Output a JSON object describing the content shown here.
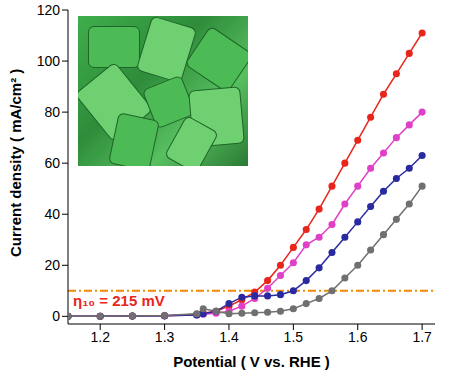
{
  "chart_data": {
    "type": "line",
    "x_label": "Potential ( V vs. RHE )",
    "y_label": "Current density ( mA/cm² )",
    "annotation": "η₁₀ = 215 mV",
    "reference_line": 10,
    "xlim": [
      1.15,
      1.72
    ],
    "xticks": [
      1.2,
      1.3,
      1.4,
      1.5,
      1.6,
      1.7
    ],
    "ylim": [
      -3,
      120
    ],
    "yticks": [
      0,
      20,
      40,
      60,
      80,
      100,
      120
    ],
    "grid": false,
    "x": [
      1.15,
      1.2,
      1.25,
      1.3,
      1.35,
      1.36,
      1.38,
      1.4,
      1.42,
      1.44,
      1.46,
      1.48,
      1.5,
      1.52,
      1.54,
      1.56,
      1.58,
      1.6,
      1.62,
      1.64,
      1.66,
      1.68,
      1.7
    ],
    "series": [
      {
        "color": "#e8261c",
        "marker": "circle",
        "line_style": "solid",
        "values": [
          0,
          0,
          0.1,
          0.2,
          0.8,
          1.2,
          2,
          4,
          6.5,
          9.5,
          14,
          20,
          27,
          34,
          42,
          51,
          60,
          69,
          78,
          87,
          95,
          103,
          111
        ]
      },
      {
        "color": "#e040c8",
        "marker": "circle",
        "line_style": "solid",
        "values": [
          0,
          0,
          0.1,
          0.2,
          0.5,
          0.8,
          1.2,
          2,
          4,
          7,
          11,
          16,
          21,
          28,
          31,
          36,
          44,
          51,
          58,
          64,
          70,
          75,
          80
        ]
      },
      {
        "color": "#2a2aa0",
        "marker": "circle",
        "line_style": "solid",
        "values": [
          0,
          0,
          0.1,
          0.2,
          0.5,
          1,
          2,
          5,
          7.5,
          8,
          8,
          8.5,
          10,
          14,
          19,
          25,
          31,
          37,
          43,
          49,
          54,
          58,
          63
        ]
      },
      {
        "color": "#707070",
        "marker": "circle",
        "line_style": "solid",
        "values": [
          0,
          0,
          0.1,
          0.3,
          1,
          3,
          2,
          1,
          1.2,
          1.4,
          1.6,
          2,
          3,
          5,
          7,
          10,
          15,
          20,
          26,
          32,
          38,
          44,
          51
        ]
      }
    ]
  }
}
